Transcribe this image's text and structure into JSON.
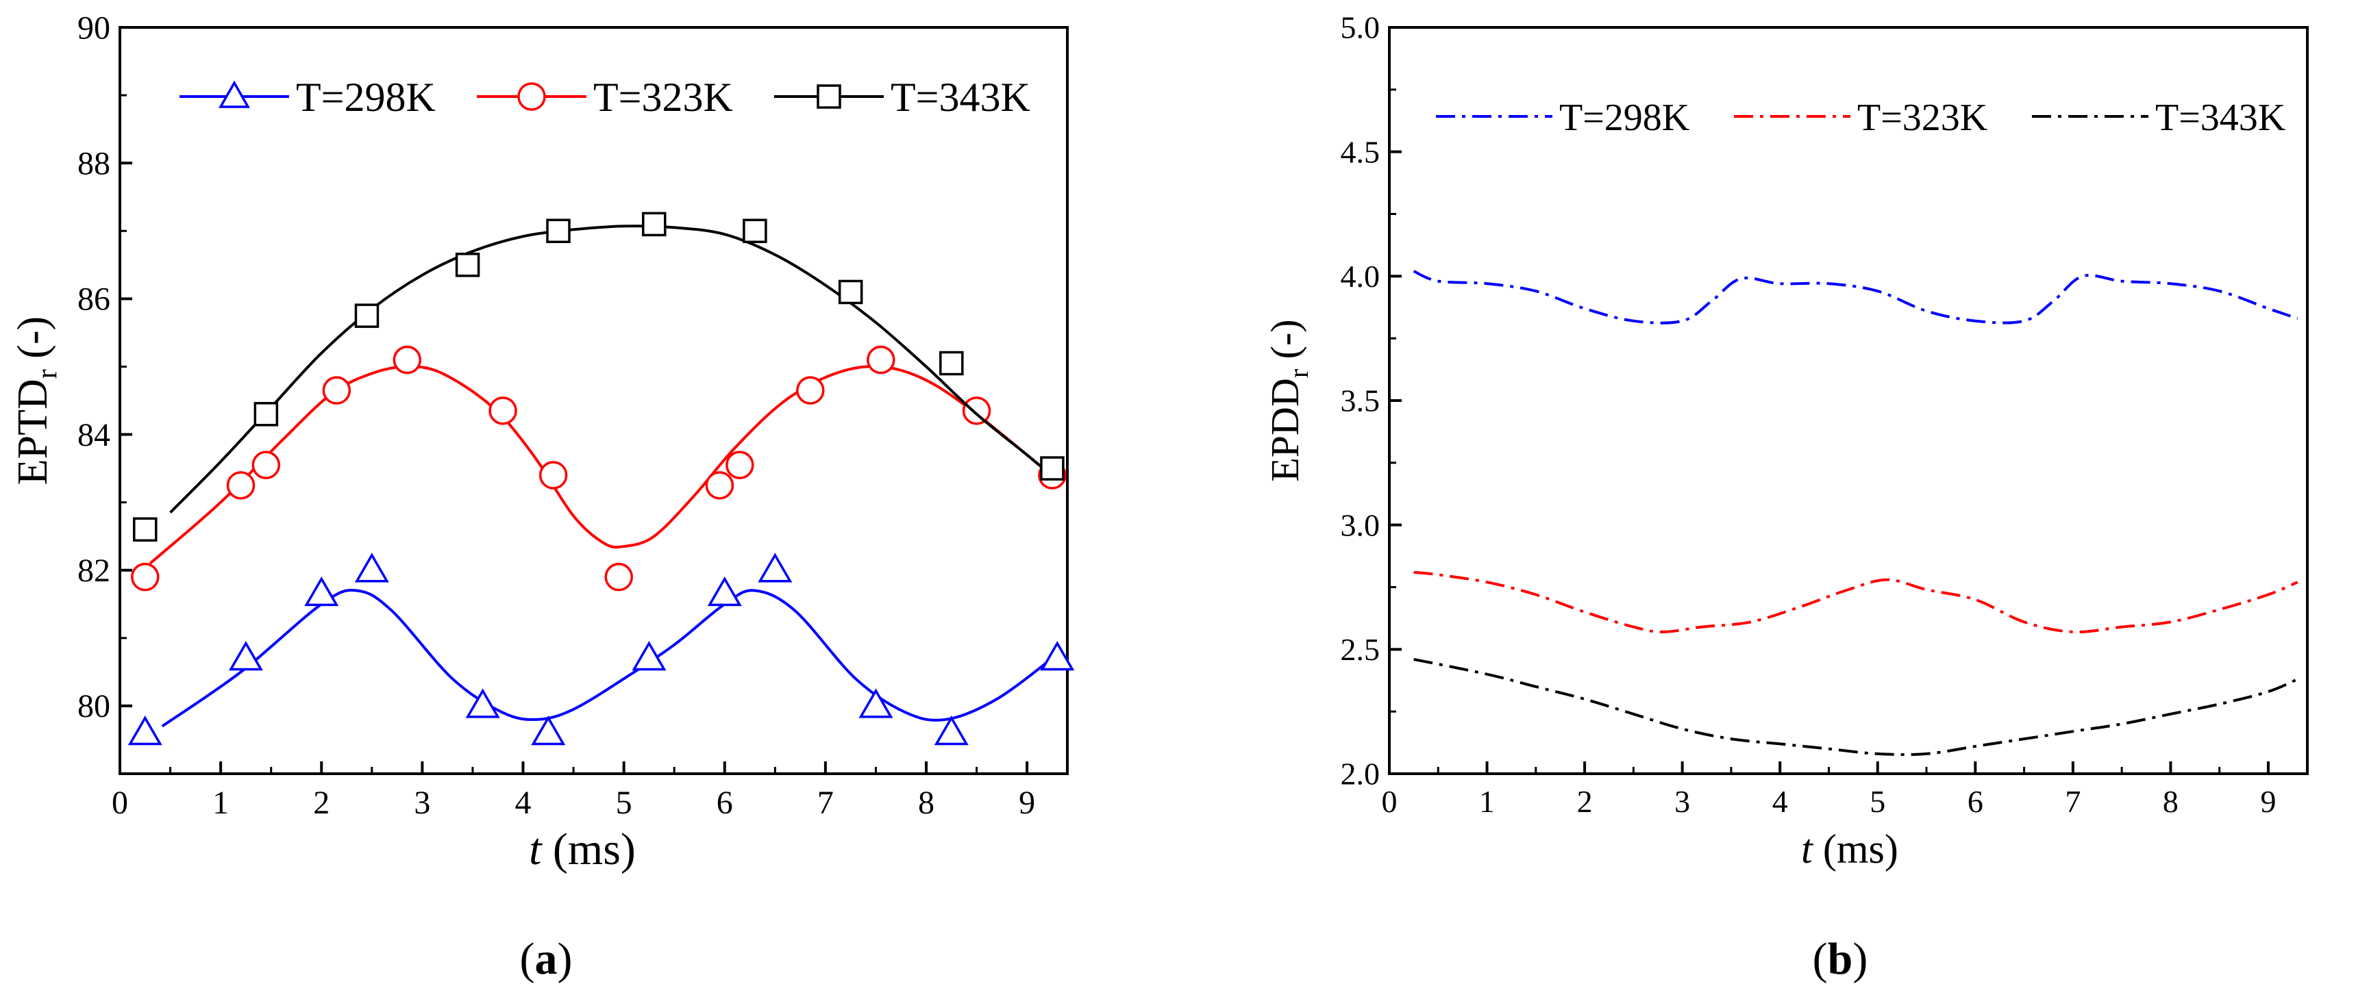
{
  "chart_data": [
    {
      "type": "line",
      "panel_label": "a",
      "ylabel": "EPTD",
      "ylabel_sub": "r",
      "ylabel_suffix": " (-)",
      "xlabel_var": "t",
      "xlabel_unit": " (ms)",
      "xlim": [
        0,
        9.4
      ],
      "ylim": [
        79,
        90
      ],
      "xticks": [
        0,
        1,
        2,
        3,
        4,
        5,
        6,
        7,
        8,
        9
      ],
      "yticks": [
        80,
        82,
        84,
        86,
        88,
        90
      ],
      "legend_position": "top",
      "series": [
        {
          "name": "T=298K",
          "color": "#0000ff",
          "marker": "triangle",
          "line_x": [
            0.42,
            1.2,
            2.0,
            2.35,
            2.7,
            3.3,
            3.8,
            4.15,
            4.5,
            5.0,
            5.5,
            6.0,
            6.3,
            6.7,
            7.3,
            7.8,
            8.2,
            8.7,
            9.25
          ],
          "line_y": [
            79.7,
            80.5,
            81.5,
            81.7,
            81.4,
            80.4,
            79.9,
            79.8,
            79.95,
            80.4,
            80.9,
            81.5,
            81.7,
            81.4,
            80.4,
            79.9,
            79.8,
            80.1,
            80.7
          ],
          "marker_x": [
            0.25,
            1.25,
            2.0,
            2.5,
            3.6,
            4.25,
            5.25,
            6.0,
            6.5,
            7.5,
            8.25,
            9.3
          ],
          "marker_y": [
            79.6,
            80.7,
            81.65,
            82.0,
            80.0,
            79.6,
            80.7,
            81.65,
            82.0,
            80.0,
            79.6,
            80.7
          ]
        },
        {
          "name": "T=323K",
          "color": "#ff0000",
          "marker": "circle",
          "line_x": [
            0.3,
            1.0,
            1.6,
            2.1,
            2.5,
            2.85,
            3.2,
            3.7,
            4.1,
            4.5,
            4.8,
            5.0,
            5.3,
            5.7,
            6.1,
            6.6,
            7.1,
            7.55,
            8.0,
            8.5,
            9.2
          ],
          "line_y": [
            82.1,
            83.0,
            83.9,
            84.6,
            84.9,
            85.0,
            84.9,
            84.4,
            83.7,
            82.8,
            82.4,
            82.35,
            82.5,
            83.1,
            83.8,
            84.5,
            84.9,
            85.0,
            84.8,
            84.3,
            83.45
          ],
          "marker_x": [
            0.25,
            1.2,
            1.45,
            2.15,
            2.85,
            3.8,
            4.3,
            4.95,
            5.95,
            6.15,
            6.85,
            7.55,
            8.5,
            9.25
          ],
          "marker_y": [
            81.9,
            83.25,
            83.55,
            84.65,
            85.1,
            84.35,
            83.4,
            81.9,
            83.25,
            83.55,
            84.65,
            85.1,
            84.35,
            83.4
          ]
        },
        {
          "name": "T=343K",
          "color": "#000000",
          "marker": "square",
          "line_x": [
            0.5,
            1.0,
            1.5,
            2.0,
            2.5,
            3.0,
            3.5,
            4.0,
            4.5,
            5.0,
            5.5,
            6.0,
            6.5,
            7.0,
            7.5,
            8.0,
            8.5,
            9.0,
            9.2
          ],
          "line_y": [
            82.85,
            83.6,
            84.4,
            85.2,
            85.85,
            86.35,
            86.7,
            86.92,
            87.02,
            87.07,
            87.05,
            86.95,
            86.65,
            86.2,
            85.65,
            85.0,
            84.3,
            83.7,
            83.45
          ],
          "marker_x": [
            0.25,
            1.45,
            2.45,
            3.45,
            4.35,
            5.3,
            6.3,
            7.25,
            8.25,
            9.25
          ],
          "marker_y": [
            82.6,
            84.3,
            85.75,
            86.5,
            87.0,
            87.1,
            87.0,
            86.1,
            85.05,
            83.5
          ]
        }
      ]
    },
    {
      "type": "line",
      "panel_label": "b",
      "ylabel": "EPDD",
      "ylabel_sub": "r",
      "ylabel_suffix": " (-)",
      "xlabel_var": "t",
      "xlabel_unit": " (ms)",
      "xlim": [
        0,
        9.4
      ],
      "ylim": [
        2.0,
        5.0
      ],
      "xticks": [
        0,
        1,
        2,
        3,
        4,
        5,
        6,
        7,
        8,
        9
      ],
      "yticks": [
        "2.0",
        "2.5",
        "3.0",
        "3.5",
        "4.0",
        "4.5",
        "5.0"
      ],
      "legend_position": "top",
      "series": [
        {
          "name": "T=298K",
          "color": "#0000ff",
          "style": "dash-dot",
          "x": [
            0.25,
            0.5,
            1.0,
            1.5,
            2.0,
            2.5,
            3.0,
            3.3,
            3.6,
            4.0,
            4.5,
            5.0,
            5.5,
            6.0,
            6.5,
            6.8,
            7.1,
            7.5,
            8.0,
            8.5,
            9.0,
            9.3
          ],
          "y": [
            4.02,
            3.98,
            3.97,
            3.94,
            3.87,
            3.82,
            3.82,
            3.9,
            3.99,
            3.97,
            3.97,
            3.94,
            3.86,
            3.82,
            3.82,
            3.9,
            4.0,
            3.98,
            3.97,
            3.94,
            3.87,
            3.83
          ]
        },
        {
          "name": "T=323K",
          "color": "#ff0000",
          "style": "dash-dot",
          "x": [
            0.25,
            0.5,
            1.0,
            1.5,
            2.0,
            2.5,
            2.8,
            3.2,
            3.7,
            4.2,
            4.7,
            5.1,
            5.5,
            6.0,
            6.5,
            7.0,
            7.5,
            8.0,
            8.5,
            9.0,
            9.3
          ],
          "y": [
            2.81,
            2.8,
            2.77,
            2.72,
            2.65,
            2.59,
            2.57,
            2.59,
            2.61,
            2.67,
            2.74,
            2.78,
            2.74,
            2.7,
            2.61,
            2.57,
            2.59,
            2.61,
            2.66,
            2.72,
            2.77
          ]
        },
        {
          "name": "T=343K",
          "color": "#000000",
          "style": "dash-dot",
          "x": [
            0.25,
            1.0,
            1.5,
            2.0,
            2.5,
            3.0,
            3.5,
            4.0,
            4.5,
            5.0,
            5.5,
            6.0,
            6.5,
            7.0,
            7.5,
            8.0,
            8.5,
            9.0,
            9.3
          ],
          "y": [
            2.46,
            2.4,
            2.35,
            2.3,
            2.24,
            2.18,
            2.14,
            2.12,
            2.1,
            2.08,
            2.08,
            2.11,
            2.14,
            2.17,
            2.2,
            2.24,
            2.28,
            2.33,
            2.38
          ]
        }
      ]
    }
  ]
}
